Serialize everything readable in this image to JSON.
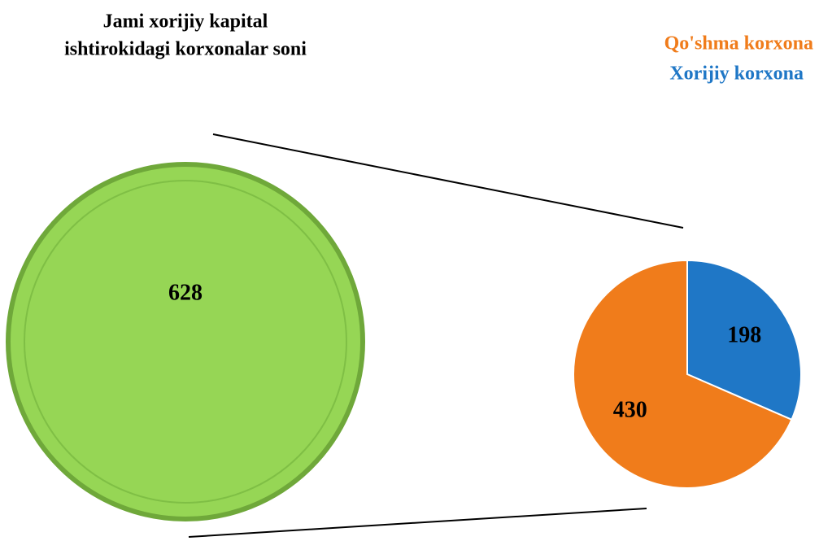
{
  "chart_data": {
    "type": "pie",
    "title": [
      "Jami xorijiy kapital",
      "ishtirokidagi korxonalar soni"
    ],
    "total_value": 628,
    "total_color": "#96d655",
    "categories": [
      "Qo'shma korxona",
      "Xorijiy korxona"
    ],
    "values": [
      430,
      198
    ],
    "colors": [
      "#f07c1b",
      "#1f77c6"
    ]
  }
}
